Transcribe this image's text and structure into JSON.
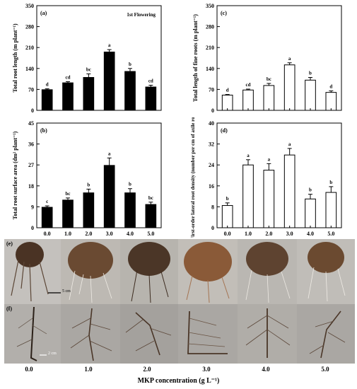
{
  "chart_data": [
    {
      "id": "a",
      "type": "bar",
      "panel_label": "(a)",
      "annotation": "1st Flowering",
      "categories": [
        "0.0",
        "1.0",
        "2.0",
        "3.0",
        "4.0",
        "5.0"
      ],
      "values": [
        69,
        92,
        110,
        195,
        130,
        78
      ],
      "errors": [
        3,
        4,
        12,
        8,
        10,
        6
      ],
      "letters": [
        "d",
        "cd",
        "bc",
        "a",
        "b",
        "cd"
      ],
      "fill": "#000000",
      "ylabel": "Total root length (m plant⁻¹)",
      "ylim": [
        0,
        350
      ],
      "yticks": [
        "0",
        "70",
        "140",
        "210",
        "280",
        "350"
      ],
      "xticklabels": [
        "",
        "",
        "",
        "",
        "",
        ""
      ],
      "xlabel": ""
    },
    {
      "id": "b",
      "type": "bar",
      "panel_label": "(b)",
      "categories": [
        "0.0",
        "1.0",
        "2.0",
        "3.0",
        "4.0",
        "5.0"
      ],
      "values": [
        8.8,
        11.9,
        15.0,
        26.8,
        15.0,
        10.0
      ],
      "errors": [
        0.6,
        0.9,
        1.6,
        3.2,
        1.8,
        1.0
      ],
      "letters": [
        "c",
        "bc",
        "b",
        "a",
        "b",
        "bc"
      ],
      "fill": "#000000",
      "ylabel": "Total root surface area (dm² plant⁻¹)",
      "ylim": [
        0,
        45
      ],
      "yticks": [
        "0",
        "9",
        "18",
        "27",
        "36",
        "45"
      ],
      "xticklabels": [
        "0.0",
        "1.0",
        "2.0",
        "3.0",
        "4.0",
        "5.0"
      ],
      "xlabel": "MKP concentration (g L⁻¹)"
    },
    {
      "id": "c",
      "type": "bar",
      "panel_label": "(c)",
      "categories": [
        "0.0",
        "1.0",
        "2.0",
        "3.0",
        "4.0",
        "5.0"
      ],
      "values": [
        51,
        68,
        83,
        152,
        101,
        60
      ],
      "errors": [
        2,
        3,
        7,
        7,
        9,
        5
      ],
      "letters": [
        "d",
        "cd",
        "bc",
        "a",
        "b",
        "d"
      ],
      "fill": "#ffffff",
      "ylabel": "Total length of fine roots (m plant⁻¹)",
      "ylim": [
        0,
        350
      ],
      "yticks": [
        "0",
        "70",
        "140",
        "210",
        "280",
        "350"
      ],
      "xticklabels": [
        "",
        "",
        "",
        "",
        "",
        ""
      ],
      "xlabel": ""
    },
    {
      "id": "d",
      "type": "bar",
      "panel_label": "(d)",
      "categories": [
        "0.0",
        "1.0",
        "2.0",
        "3.0",
        "4.0",
        "5.0"
      ],
      "values": [
        8.5,
        24.0,
        22.0,
        27.8,
        11.0,
        13.5
      ],
      "errors": [
        1.0,
        2.0,
        2.5,
        2.5,
        1.8,
        2.2
      ],
      "letters": [
        "b",
        "a",
        "a",
        "a",
        "b",
        "b"
      ],
      "fill": "#ffffff",
      "ylabel": "First-order lateral root density (number per cm of axile root)",
      "ylim": [
        0,
        40
      ],
      "yticks": [
        "0",
        "8",
        "16",
        "24",
        "32",
        "40"
      ],
      "xticklabels": [
        "0.0",
        "1.0",
        "2.0",
        "3.0",
        "4.0",
        "5.0"
      ],
      "xlabel": "MKP concentration (g L⁻¹)"
    }
  ],
  "photos": {
    "row_e": {
      "label": "(e)",
      "scale": "5 cm"
    },
    "row_f": {
      "label": "(f)",
      "scale": "2 cm"
    },
    "tick_labels": [
      "0.0",
      "1.0",
      "2.0",
      "3.0",
      "4.0",
      "5.0"
    ],
    "axis_label": "MKP concentration  (g L⁻¹)"
  }
}
